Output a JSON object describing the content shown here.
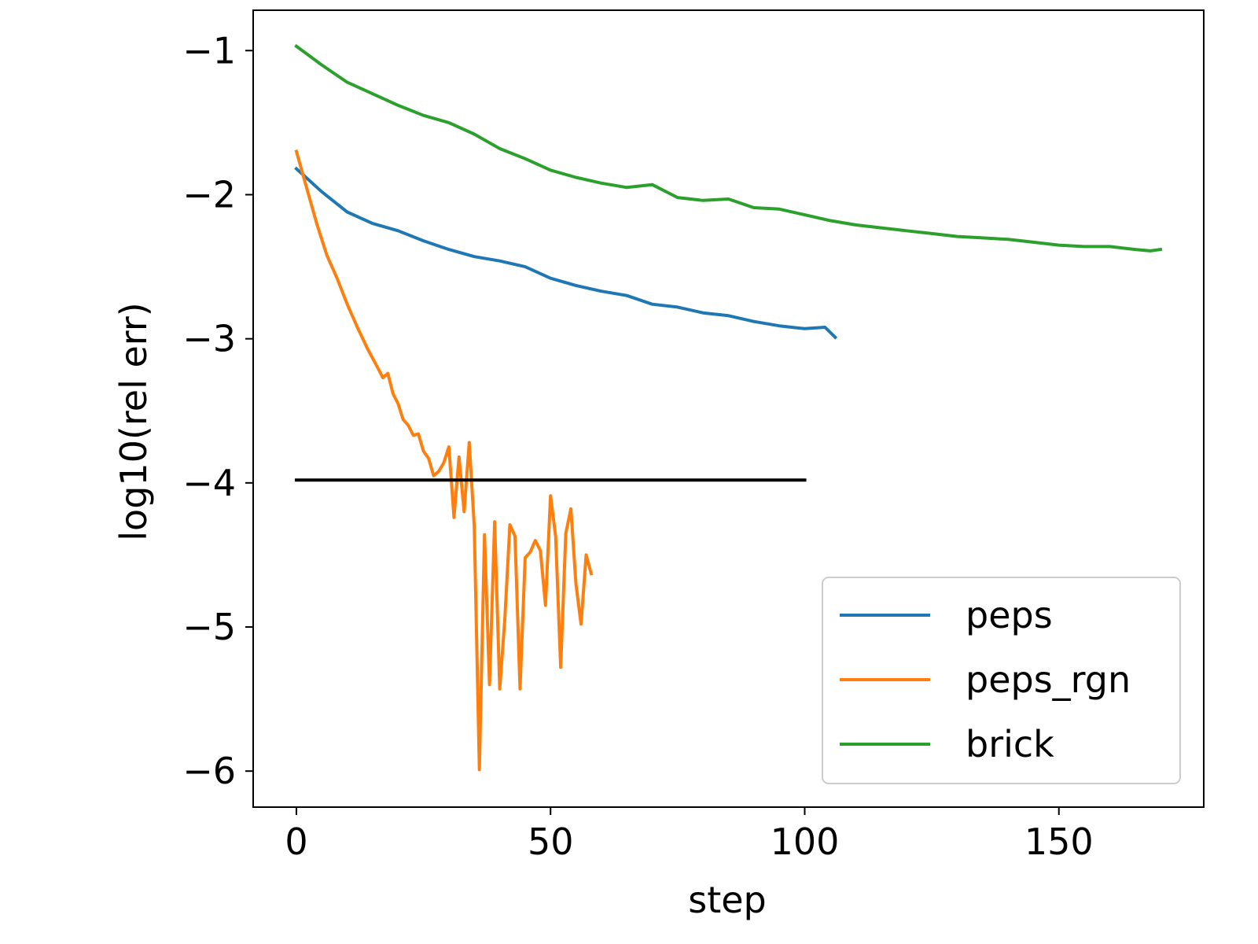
{
  "chart_data": {
    "type": "line",
    "title": "",
    "xlabel": "step",
    "ylabel": "log10(rel err)",
    "xlim": [
      -8.5,
      178.5
    ],
    "ylim": [
      -6.25,
      -0.72
    ],
    "xticks": [
      0,
      50,
      100,
      150
    ],
    "xtick_labels": [
      "0",
      "50",
      "100",
      "150"
    ],
    "yticks": [
      -1,
      -2,
      -3,
      -4,
      -5,
      -6
    ],
    "ytick_labels": [
      "−1",
      "−2",
      "−3",
      "−4",
      "−5",
      "−6"
    ],
    "grid": false,
    "legend_position": "lower-right",
    "series": [
      {
        "name": "peps",
        "color": "#1f77b4",
        "points": [
          [
            0,
            -1.82
          ],
          [
            5,
            -1.98
          ],
          [
            10,
            -2.12
          ],
          [
            15,
            -2.2
          ],
          [
            20,
            -2.25
          ],
          [
            25,
            -2.32
          ],
          [
            30,
            -2.38
          ],
          [
            35,
            -2.43
          ],
          [
            40,
            -2.46
          ],
          [
            45,
            -2.5
          ],
          [
            50,
            -2.58
          ],
          [
            55,
            -2.63
          ],
          [
            60,
            -2.67
          ],
          [
            65,
            -2.7
          ],
          [
            70,
            -2.76
          ],
          [
            75,
            -2.78
          ],
          [
            80,
            -2.82
          ],
          [
            85,
            -2.84
          ],
          [
            90,
            -2.88
          ],
          [
            95,
            -2.91
          ],
          [
            100,
            -2.93
          ],
          [
            104,
            -2.92
          ],
          [
            106,
            -2.99
          ]
        ]
      },
      {
        "name": "peps_rgn",
        "color": "#ff7f0e",
        "points": [
          [
            0,
            -1.7
          ],
          [
            2,
            -1.95
          ],
          [
            4,
            -2.2
          ],
          [
            6,
            -2.42
          ],
          [
            8,
            -2.58
          ],
          [
            10,
            -2.76
          ],
          [
            12,
            -2.92
          ],
          [
            14,
            -3.07
          ],
          [
            16,
            -3.2
          ],
          [
            17,
            -3.27
          ],
          [
            18,
            -3.24
          ],
          [
            19,
            -3.38
          ],
          [
            20,
            -3.45
          ],
          [
            21,
            -3.56
          ],
          [
            22,
            -3.6
          ],
          [
            23,
            -3.67
          ],
          [
            24,
            -3.66
          ],
          [
            25,
            -3.78
          ],
          [
            26,
            -3.83
          ],
          [
            27,
            -3.95
          ],
          [
            28,
            -3.92
          ],
          [
            29,
            -3.86
          ],
          [
            30,
            -3.75
          ],
          [
            31,
            -4.24
          ],
          [
            32,
            -3.82
          ],
          [
            33,
            -4.2
          ],
          [
            34,
            -3.72
          ],
          [
            35,
            -4.3
          ],
          [
            36,
            -5.99
          ],
          [
            37,
            -4.36
          ],
          [
            38,
            -5.4
          ],
          [
            39,
            -4.27
          ],
          [
            40,
            -5.43
          ],
          [
            41,
            -4.95
          ],
          [
            42,
            -4.29
          ],
          [
            43,
            -4.37
          ],
          [
            44,
            -5.43
          ],
          [
            45,
            -4.52
          ],
          [
            46,
            -4.48
          ],
          [
            47,
            -4.4
          ],
          [
            48,
            -4.47
          ],
          [
            49,
            -4.85
          ],
          [
            50,
            -4.09
          ],
          [
            51,
            -4.37
          ],
          [
            52,
            -5.28
          ],
          [
            53,
            -4.35
          ],
          [
            54,
            -4.18
          ],
          [
            55,
            -4.7
          ],
          [
            56,
            -4.98
          ],
          [
            57,
            -4.5
          ],
          [
            58,
            -4.63
          ]
        ]
      },
      {
        "name": "brick",
        "color": "#2ca02c",
        "points": [
          [
            0,
            -0.97
          ],
          [
            5,
            -1.1
          ],
          [
            10,
            -1.22
          ],
          [
            15,
            -1.3
          ],
          [
            20,
            -1.38
          ],
          [
            25,
            -1.45
          ],
          [
            30,
            -1.5
          ],
          [
            35,
            -1.58
          ],
          [
            40,
            -1.68
          ],
          [
            45,
            -1.75
          ],
          [
            50,
            -1.83
          ],
          [
            55,
            -1.88
          ],
          [
            60,
            -1.92
          ],
          [
            65,
            -1.95
          ],
          [
            70,
            -1.93
          ],
          [
            75,
            -2.02
          ],
          [
            80,
            -2.04
          ],
          [
            85,
            -2.03
          ],
          [
            90,
            -2.09
          ],
          [
            95,
            -2.1
          ],
          [
            100,
            -2.14
          ],
          [
            105,
            -2.18
          ],
          [
            110,
            -2.21
          ],
          [
            115,
            -2.23
          ],
          [
            120,
            -2.25
          ],
          [
            125,
            -2.27
          ],
          [
            130,
            -2.29
          ],
          [
            135,
            -2.3
          ],
          [
            140,
            -2.31
          ],
          [
            145,
            -2.33
          ],
          [
            150,
            -2.35
          ],
          [
            155,
            -2.36
          ],
          [
            160,
            -2.36
          ],
          [
            165,
            -2.38
          ],
          [
            168,
            -2.39
          ],
          [
            170,
            -2.38
          ]
        ]
      },
      {
        "name": "",
        "color": "#000000",
        "points": [
          [
            0,
            -3.98
          ],
          [
            100,
            -3.98
          ]
        ]
      }
    ]
  }
}
